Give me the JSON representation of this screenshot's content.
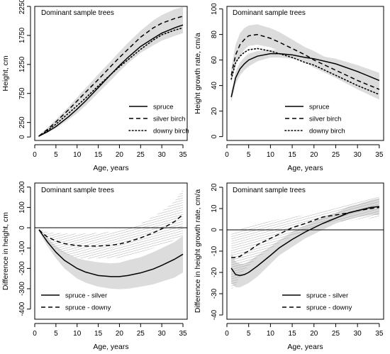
{
  "chart_data": [
    {
      "type": "line",
      "title": "Dominant sample trees",
      "xlabel": "Age, years",
      "ylabel": "Height, cm",
      "xlim": [
        0,
        36
      ],
      "ylim": [
        -60,
        2250
      ],
      "x_ticks": [
        0,
        5,
        10,
        15,
        20,
        25,
        30,
        35
      ],
      "x_tick_labels": [
        "0",
        "5",
        "10",
        "15",
        "20",
        "25",
        "30",
        "35"
      ],
      "y_ticks": [
        0,
        250,
        750,
        1250,
        1750,
        2250
      ],
      "y_tick_labels": [
        "0",
        "250",
        "750",
        "1250",
        "1750",
        "2250"
      ],
      "legend_position": "bottom-right",
      "legend": [
        "spruce",
        "silver birch",
        "downy birch"
      ],
      "series": [
        {
          "name": "spruce",
          "style": "solid",
          "x": [
            1,
            3,
            5,
            8,
            10,
            12,
            15,
            18,
            20,
            22,
            25,
            28,
            30,
            33,
            35
          ],
          "y": [
            15,
            90,
            180,
            350,
            480,
            620,
            850,
            1080,
            1230,
            1370,
            1560,
            1700,
            1790,
            1880,
            1930
          ],
          "band_lower": [
            5,
            70,
            150,
            300,
            410,
            540,
            760,
            980,
            1130,
            1270,
            1450,
            1580,
            1660,
            1740,
            1790
          ],
          "band_upper": [
            30,
            115,
            215,
            400,
            545,
            700,
            940,
            1180,
            1330,
            1470,
            1670,
            1830,
            1920,
            2020,
            2070
          ]
        },
        {
          "name": "silver birch",
          "style": "dashed",
          "x": [
            1,
            3,
            5,
            8,
            10,
            12,
            15,
            18,
            20,
            22,
            25,
            28,
            30,
            33,
            35
          ],
          "y": [
            15,
            130,
            260,
            470,
            620,
            770,
            990,
            1220,
            1370,
            1510,
            1720,
            1880,
            1960,
            2040,
            2080
          ],
          "band_lower": [
            5,
            100,
            220,
            420,
            560,
            700,
            910,
            1130,
            1270,
            1410,
            1610,
            1760,
            1830,
            1890,
            1920
          ],
          "band_upper": [
            35,
            160,
            300,
            520,
            680,
            840,
            1080,
            1310,
            1470,
            1620,
            1830,
            2010,
            2100,
            2200,
            2240
          ]
        },
        {
          "name": "downy birch",
          "style": "dotted",
          "x": [
            1,
            3,
            5,
            8,
            10,
            12,
            15,
            18,
            20,
            22,
            25,
            28,
            30,
            33,
            35
          ],
          "y": [
            15,
            110,
            220,
            410,
            540,
            670,
            880,
            1080,
            1210,
            1330,
            1510,
            1670,
            1760,
            1840,
            1880
          ]
        }
      ]
    },
    {
      "type": "line",
      "title": "Dominant sample trees",
      "xlabel": "Age, years",
      "ylabel": "Height growth rate, cm/a",
      "xlim": [
        0,
        36
      ],
      "ylim": [
        -3,
        102
      ],
      "x_ticks": [
        0,
        5,
        10,
        15,
        20,
        25,
        30,
        35
      ],
      "x_tick_labels": [
        "0",
        "5",
        "10",
        "15",
        "20",
        "25",
        "30",
        "35"
      ],
      "y_ticks": [
        0,
        20,
        40,
        60,
        80,
        100
      ],
      "y_tick_labels": [
        "0",
        "20",
        "40",
        "60",
        "80",
        "100"
      ],
      "legend_position": "bottom-right",
      "legend": [
        "spruce",
        "silver birch",
        "downy birch"
      ],
      "series": [
        {
          "name": "spruce",
          "style": "solid",
          "x": [
            1,
            2,
            3,
            4,
            5,
            7,
            10,
            12,
            15,
            18,
            20,
            25,
            30,
            35
          ],
          "y": [
            31,
            46,
            53,
            57,
            60,
            63,
            65,
            65,
            64,
            62,
            61,
            57,
            51,
            44
          ],
          "band_lower": [
            27,
            41,
            48,
            52,
            55,
            59,
            62,
            62,
            61,
            59,
            57,
            53,
            46,
            38
          ],
          "band_upper": [
            35,
            51,
            58,
            62,
            65,
            67,
            68,
            68,
            67,
            65,
            64,
            61,
            56,
            50
          ]
        },
        {
          "name": "silver birch",
          "style": "dashed",
          "x": [
            1,
            2,
            3,
            4,
            5,
            7,
            10,
            12,
            15,
            18,
            20,
            25,
            30,
            35
          ],
          "y": [
            48,
            64,
            72,
            76,
            79,
            80,
            77,
            74,
            69,
            64,
            60,
            52,
            44,
            37
          ],
          "band_lower": [
            42,
            56,
            63,
            68,
            71,
            72,
            70,
            67,
            63,
            58,
            54,
            46,
            37,
            29
          ],
          "band_upper": [
            54,
            72,
            81,
            85,
            87,
            88,
            85,
            82,
            76,
            70,
            67,
            58,
            51,
            45
          ]
        },
        {
          "name": "downy birch",
          "style": "dotted",
          "x": [
            1,
            2,
            3,
            4,
            5,
            7,
            10,
            12,
            15,
            18,
            20,
            25,
            30,
            35
          ],
          "y": [
            45,
            58,
            63,
            66,
            68,
            69,
            67,
            65,
            62,
            58,
            56,
            48,
            40,
            33
          ]
        }
      ]
    },
    {
      "type": "line",
      "title": "Dominant sample trees",
      "xlabel": "Age, years",
      "ylabel": "Difference in height, cm",
      "xlim": [
        0,
        36
      ],
      "ylim": [
        -450,
        220
      ],
      "x_ticks": [
        0,
        5,
        10,
        15,
        20,
        25,
        30,
        35
      ],
      "x_tick_labels": [
        "0",
        "5",
        "10",
        "15",
        "20",
        "25",
        "30",
        "35"
      ],
      "y_ticks": [
        -400,
        -300,
        -200,
        -100,
        0,
        100,
        200
      ],
      "y_tick_labels": [
        "-400",
        "-300",
        "-200",
        "-100",
        "0",
        "100",
        "200"
      ],
      "reference_line": 0,
      "legend_position": "bottom-left",
      "legend": [
        "spruce - silver",
        "spruce - downy"
      ],
      "series": [
        {
          "name": "spruce - silver",
          "style": "solid",
          "x": [
            1,
            2,
            3,
            5,
            7,
            10,
            12,
            15,
            18,
            20,
            22,
            25,
            28,
            30,
            33,
            35
          ],
          "y": [
            -10,
            -40,
            -70,
            -120,
            -160,
            -200,
            -218,
            -235,
            -240,
            -240,
            -235,
            -222,
            -203,
            -185,
            -155,
            -130
          ],
          "band_lower": [
            -15,
            -55,
            -90,
            -150,
            -200,
            -250,
            -270,
            -290,
            -300,
            -302,
            -300,
            -290,
            -278,
            -265,
            -245,
            -220
          ],
          "band_upper": [
            -5,
            -25,
            -50,
            -90,
            -120,
            -150,
            -160,
            -170,
            -175,
            -172,
            -160,
            -145,
            -120,
            -100,
            -70,
            -40
          ]
        },
        {
          "name": "spruce - downy",
          "style": "dashed",
          "x": [
            1,
            2,
            3,
            5,
            7,
            10,
            12,
            15,
            18,
            20,
            22,
            25,
            28,
            30,
            33,
            35
          ],
          "y": [
            -10,
            -30,
            -45,
            -65,
            -78,
            -88,
            -90,
            -90,
            -86,
            -80,
            -70,
            -50,
            -25,
            -5,
            30,
            65
          ],
          "band_lower": [
            -15,
            -45,
            -70,
            -105,
            -128,
            -148,
            -152,
            -150,
            -150,
            -148,
            -138,
            -120,
            -100,
            -85,
            -60,
            -40
          ],
          "band_upper": [
            -5,
            -15,
            -20,
            -25,
            -28,
            -30,
            -28,
            -25,
            -20,
            -10,
            0,
            20,
            55,
            80,
            130,
            190
          ]
        }
      ]
    },
    {
      "type": "line",
      "title": "Dominant sample trees",
      "xlabel": "Age, years",
      "ylabel": "Difference in height growth rate, cm/a",
      "xlim": [
        0,
        36
      ],
      "ylim": [
        -42,
        22
      ],
      "x_ticks": [
        0,
        5,
        10,
        15,
        20,
        25,
        30,
        35
      ],
      "x_tick_labels": [
        "0",
        "5",
        "10",
        "15",
        "20",
        "25",
        "30",
        "35"
      ],
      "y_ticks": [
        -40,
        -30,
        -20,
        -10,
        0,
        10,
        20
      ],
      "y_tick_labels": [
        "-40",
        "-30",
        "-20",
        "-10",
        "0",
        "10",
        "20"
      ],
      "reference_line": 0,
      "legend_position": "bottom-right",
      "legend": [
        "spruce - silver",
        "spruce - downy"
      ],
      "series": [
        {
          "name": "spruce - silver",
          "style": "solid",
          "x": [
            1,
            2,
            3,
            4,
            5,
            7,
            10,
            12,
            15,
            18,
            20,
            22,
            25,
            28,
            30,
            33,
            35
          ],
          "y": [
            -18,
            -21,
            -21.5,
            -21,
            -20,
            -17,
            -12,
            -8.5,
            -4.5,
            -1,
            1,
            3,
            5.5,
            8,
            9,
            10.5,
            11
          ],
          "band_lower": [
            -25,
            -27,
            -27,
            -26,
            -25,
            -22,
            -16,
            -12,
            -8,
            -4,
            -2,
            0,
            3,
            5,
            6,
            7,
            7
          ],
          "band_upper": [
            -11,
            -15,
            -16,
            -16,
            -15,
            -12,
            -8,
            -5,
            -1,
            2,
            4,
            6,
            8,
            11,
            12,
            14,
            15
          ]
        },
        {
          "name": "spruce - downy",
          "style": "dashed",
          "x": [
            1,
            2,
            3,
            4,
            5,
            7,
            10,
            12,
            15,
            18,
            20,
            22,
            25,
            28,
            30,
            33,
            35
          ],
          "y": [
            -13,
            -13,
            -12.5,
            -11,
            -10,
            -7,
            -4,
            -2,
            1,
            3,
            4.5,
            6,
            7,
            8,
            9,
            10,
            10.5
          ],
          "band_lower": [
            -28,
            -26,
            -22,
            -19,
            -17,
            -13,
            -9,
            -6,
            -3,
            -1,
            1,
            2,
            4,
            4,
            5,
            5.5,
            5.5
          ],
          "band_upper": [
            -1,
            -1,
            0,
            1,
            2,
            3,
            4,
            5,
            6,
            7,
            8,
            9,
            10,
            12,
            13,
            14.5,
            15.5
          ]
        }
      ]
    }
  ]
}
